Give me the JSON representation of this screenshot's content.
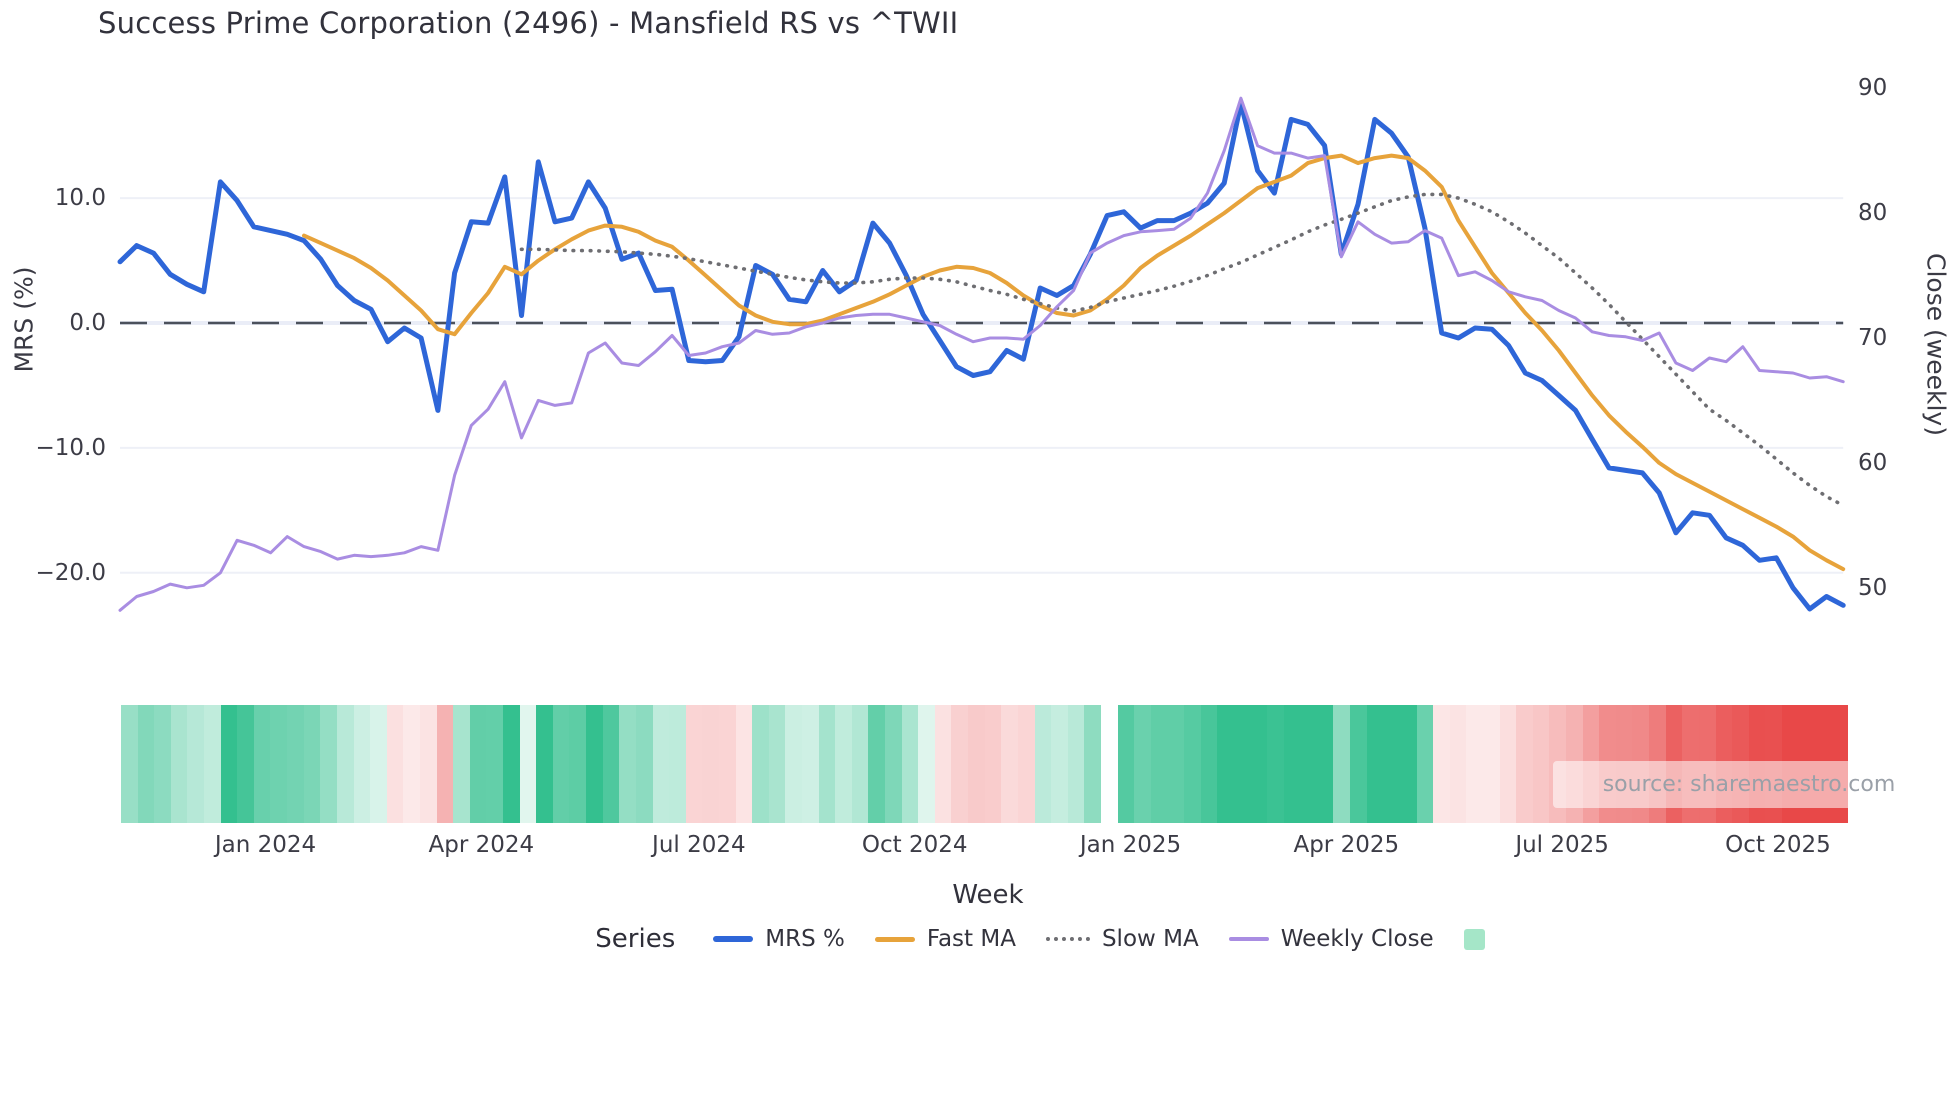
{
  "title": "Success Prime Corporation (2496) - Mansfield RS vs ^TWII",
  "axes": {
    "left_label": "MRS (%)",
    "right_label": "Close (weekly)",
    "x_label": "Week",
    "left_ticks": [
      {
        "label": "10.0",
        "v": 10
      },
      {
        "label": "0.0",
        "v": 0
      },
      {
        "label": "−10.0",
        "v": -10
      },
      {
        "label": "−20.0",
        "v": -20
      }
    ],
    "right_ticks": [
      {
        "label": "90",
        "v": 90
      },
      {
        "label": "80",
        "v": 80
      },
      {
        "label": "70",
        "v": 70
      },
      {
        "label": "60",
        "v": 60
      },
      {
        "label": "50",
        "v": 50
      }
    ],
    "x_ticks": [
      {
        "label": "Jan 2024",
        "week": 8.7
      },
      {
        "label": "Apr 2024",
        "week": 21.6
      },
      {
        "label": "Jul 2024",
        "week": 34.6
      },
      {
        "label": "Oct 2024",
        "week": 47.5
      },
      {
        "label": "Jan 2025",
        "week": 60.4
      },
      {
        "label": "Apr 2025",
        "week": 73.3
      },
      {
        "label": "Jul 2025",
        "week": 86.2
      },
      {
        "label": "Oct 2025",
        "week": 99.1
      }
    ]
  },
  "legend": {
    "title": "Series",
    "items": [
      {
        "label": "MRS %",
        "swatch": "line",
        "color": "#2e66d8",
        "thickness": 6
      },
      {
        "label": "Fast MA",
        "swatch": "line",
        "color": "#e7a33b",
        "thickness": 5
      },
      {
        "label": "Slow MA",
        "swatch": "dotted",
        "color": "#6e6e72"
      },
      {
        "label": "Weekly Close",
        "swatch": "line",
        "color": "#a98de2",
        "thickness": 4
      },
      {
        "label": "",
        "swatch": "square",
        "color": "#a5e6c8"
      }
    ]
  },
  "source": "source: sharemaestro.com",
  "colors": {
    "mrs_line": "#2e66d8",
    "fast_ma_line": "#e7a33b",
    "slow_ma_line": "#6e6e72",
    "weekly_close_line": "#a98de2",
    "zero_dash": "#4b515c",
    "gridline": "#eef0f7",
    "heat_green_full": "#34c08f",
    "heat_red_full": "#e84848",
    "heat_missing": "#ffffff"
  },
  "chart_data": {
    "type": "line",
    "x_unit": "week",
    "n_weeks": 104,
    "left_axis": {
      "label": "MRS (%)",
      "range_shown": [
        -26,
        20
      ]
    },
    "right_axis": {
      "label": "Close (weekly)",
      "range_shown": [
        46,
        92
      ]
    },
    "grid": "horizontal-only",
    "legend_position": "bottom-center",
    "series": [
      {
        "name": "MRS %",
        "axis": "left",
        "style": "solid",
        "color": "#2e66d8",
        "values": [
          4.9,
          6.2,
          5.6,
          3.9,
          3.1,
          2.5,
          11.3,
          9.8,
          7.7,
          7.4,
          7.1,
          6.6,
          5.1,
          3.0,
          1.8,
          1.1,
          -1.5,
          -0.4,
          -1.2,
          -7.0,
          4.0,
          8.1,
          8.0,
          11.7,
          0.6,
          12.9,
          8.1,
          8.4,
          11.3,
          9.2,
          5.1,
          5.6,
          2.6,
          2.7,
          -3.0,
          -3.1,
          -3.0,
          -1.1,
          4.6,
          3.9,
          1.9,
          1.7,
          4.2,
          2.5,
          3.4,
          8.0,
          6.4,
          3.8,
          0.7,
          -1.4,
          -3.5,
          -4.2,
          -3.9,
          -2.2,
          -2.9,
          2.8,
          2.2,
          3.0,
          5.5,
          8.6,
          8.9,
          7.6,
          8.2,
          8.2,
          8.8,
          9.6,
          11.2,
          17.6,
          12.2,
          10.4,
          16.3,
          15.9,
          14.2,
          5.5,
          9.5,
          16.3,
          15.2,
          13.3,
          7.6,
          -0.8,
          -1.2,
          -0.4,
          -0.5,
          -1.8,
          -4.0,
          -4.6,
          -5.8,
          -7.0,
          -9.3,
          -11.6,
          -11.8,
          -12.0,
          -13.6,
          -16.8,
          -15.2,
          -15.4,
          -17.2,
          -17.8,
          -19.0,
          -18.8,
          -21.2,
          -22.9,
          -21.9,
          -22.6
        ]
      },
      {
        "name": "Fast MA",
        "axis": "left",
        "style": "solid",
        "color": "#e7a33b",
        "values": [
          null,
          null,
          null,
          null,
          null,
          null,
          null,
          null,
          null,
          null,
          null,
          7.0,
          6.4,
          5.8,
          5.2,
          4.4,
          3.4,
          2.2,
          1.0,
          -0.5,
          -0.9,
          0.8,
          2.4,
          4.5,
          3.9,
          5.0,
          5.9,
          6.7,
          7.4,
          7.8,
          7.7,
          7.3,
          6.6,
          6.1,
          5.0,
          3.8,
          2.6,
          1.4,
          0.6,
          0.1,
          -0.1,
          -0.1,
          0.2,
          0.7,
          1.2,
          1.7,
          2.3,
          3.0,
          3.7,
          4.2,
          4.5,
          4.4,
          4.0,
          3.2,
          2.2,
          1.4,
          0.8,
          0.6,
          1.0,
          1.9,
          3.0,
          4.4,
          5.4,
          6.2,
          7.0,
          7.9,
          8.8,
          9.8,
          10.8,
          11.3,
          11.8,
          12.8,
          13.2,
          13.4,
          12.8,
          13.2,
          13.4,
          13.2,
          12.2,
          10.9,
          8.2,
          6.1,
          4.0,
          2.4,
          0.8,
          -0.6,
          -2.2,
          -4.0,
          -5.8,
          -7.4,
          -8.7,
          -9.9,
          -11.2,
          -12.1,
          -12.8,
          -13.5,
          -14.2,
          -14.9,
          -15.6,
          -16.3,
          -17.1,
          -18.2,
          -19.0,
          -19.7
        ]
      },
      {
        "name": "Slow MA",
        "axis": "left",
        "style": "dotted",
        "color": "#6e6e72",
        "values": [
          null,
          null,
          null,
          null,
          null,
          null,
          null,
          null,
          null,
          null,
          null,
          null,
          null,
          null,
          null,
          null,
          null,
          null,
          null,
          null,
          null,
          null,
          null,
          null,
          5.9,
          5.9,
          5.85,
          5.8,
          5.8,
          5.75,
          5.7,
          5.6,
          5.5,
          5.35,
          5.15,
          4.9,
          4.65,
          4.4,
          4.15,
          3.9,
          3.65,
          3.45,
          3.3,
          3.2,
          3.2,
          3.3,
          3.5,
          3.6,
          3.6,
          3.5,
          3.3,
          2.95,
          2.6,
          2.3,
          1.9,
          1.55,
          1.2,
          0.95,
          1.25,
          1.7,
          2.0,
          2.3,
          2.6,
          2.95,
          3.35,
          3.8,
          4.35,
          4.85,
          5.45,
          6.05,
          6.65,
          7.3,
          7.85,
          8.3,
          8.8,
          9.3,
          9.8,
          10.1,
          10.3,
          10.3,
          10.0,
          9.5,
          8.9,
          8.1,
          7.2,
          6.2,
          5.2,
          4.0,
          2.8,
          1.5,
          0.1,
          -1.3,
          -2.7,
          -4.1,
          -5.5,
          -6.9,
          -7.8,
          -8.8,
          -9.8,
          -10.9,
          -12.0,
          -13.0,
          -13.9,
          -14.6
        ]
      },
      {
        "name": "Weekly Close",
        "axis": "right",
        "style": "solid",
        "color": "#a98de2",
        "values": [
          48.2,
          49.3,
          49.7,
          50.3,
          50.0,
          50.2,
          51.2,
          53.8,
          53.4,
          52.8,
          54.1,
          53.3,
          52.9,
          52.3,
          52.6,
          52.5,
          52.6,
          52.8,
          53.3,
          53.0,
          59.0,
          63.0,
          64.3,
          66.5,
          62.0,
          65.0,
          64.6,
          64.8,
          68.8,
          69.6,
          68.0,
          67.8,
          68.9,
          70.2,
          68.6,
          68.8,
          69.3,
          69.6,
          70.6,
          70.3,
          70.4,
          70.9,
          71.2,
          71.6,
          71.8,
          71.9,
          71.9,
          71.6,
          71.3,
          71.0,
          70.3,
          69.7,
          70.0,
          70.0,
          69.9,
          71.0,
          72.5,
          73.8,
          76.8,
          77.6,
          78.2,
          78.5,
          78.6,
          78.7,
          79.6,
          81.6,
          85.0,
          89.2,
          85.4,
          84.8,
          84.8,
          84.4,
          84.6,
          76.5,
          79.3,
          78.3,
          77.6,
          77.7,
          78.6,
          78.0,
          75.0,
          75.3,
          74.6,
          73.7,
          73.3,
          73.0,
          72.2,
          71.6,
          70.5,
          70.2,
          70.1,
          69.8,
          70.4,
          68.0,
          67.4,
          68.4,
          68.1,
          69.3,
          67.4,
          67.3,
          67.2,
          66.8,
          66.9,
          66.5
        ]
      },
      {
        "name": "MRS heatmap",
        "axis": "heat-strip",
        "style": "heatmap",
        "values": [
          4.9,
          6.2,
          5.6,
          3.9,
          3.1,
          2.5,
          11.3,
          9.8,
          7.7,
          7.4,
          7.1,
          6.6,
          5.1,
          3.0,
          1.8,
          1.1,
          -1.5,
          -0.4,
          -1.2,
          -7.0,
          4.0,
          8.1,
          8.0,
          11.7,
          0.6,
          12.9,
          8.1,
          8.4,
          11.3,
          9.2,
          5.1,
          5.6,
          2.6,
          2.7,
          -3.0,
          -3.1,
          -3.0,
          -1.1,
          4.6,
          3.9,
          1.9,
          1.7,
          4.2,
          2.5,
          3.4,
          8.0,
          6.4,
          3.8,
          0.7,
          -1.4,
          -3.5,
          -4.2,
          -3.9,
          -2.2,
          -2.9,
          2.8,
          2.2,
          3.0,
          5.5,
          null,
          8.9,
          7.6,
          8.2,
          8.2,
          8.8,
          9.6,
          11.2,
          17.6,
          12.2,
          10.4,
          16.3,
          15.9,
          14.2,
          5.5,
          9.5,
          16.3,
          15.2,
          13.3,
          7.6,
          -0.8,
          -1.2,
          -0.4,
          -0.5,
          -1.8,
          -4.0,
          -4.6,
          -5.8,
          -7.0,
          -9.3,
          -11.6,
          -11.8,
          -12.0,
          -13.6,
          -16.8,
          -15.2,
          -15.4,
          -17.2,
          -17.8,
          -19.0,
          -18.8,
          -21.2,
          -22.9,
          -21.9,
          -22.6
        ]
      }
    ],
    "zero_line": {
      "axis": "left",
      "value": 0,
      "style": "dashed"
    }
  }
}
